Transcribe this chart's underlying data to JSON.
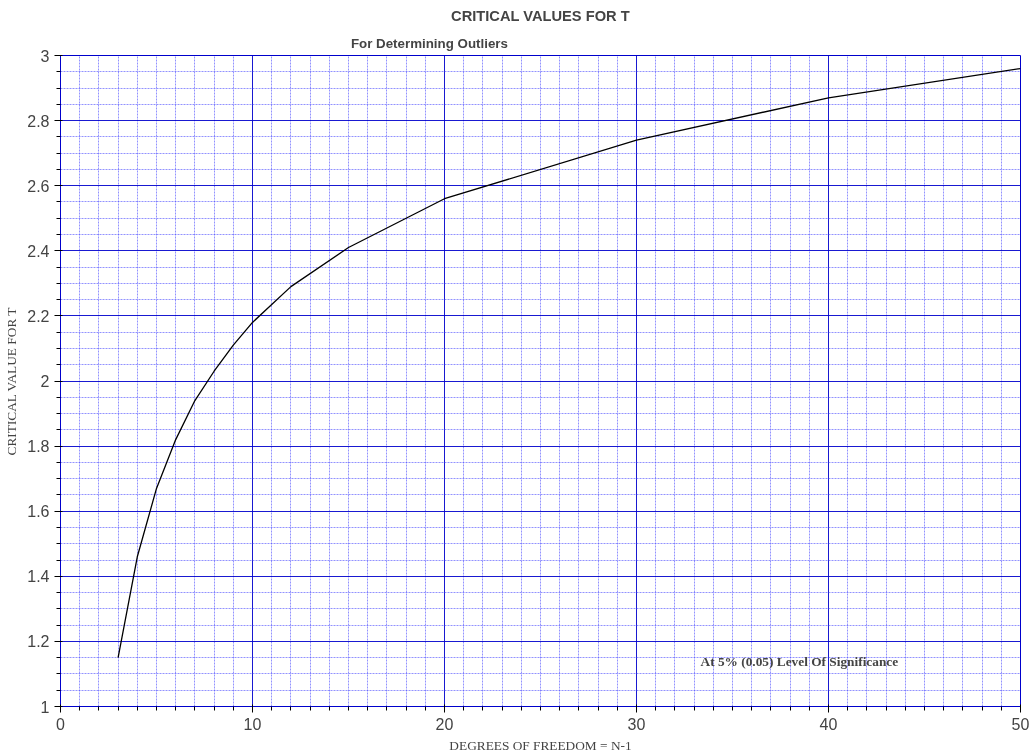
{
  "chart_data": {
    "type": "line",
    "title": "CRITICAL VALUES FOR T",
    "subtitle": "For Determining Outliers",
    "annotations": [
      "At 5% (0.05) Level Of Significance"
    ],
    "xlabel": "DEGREES OF FREEDOM = N-1",
    "ylabel": "CRITICAL VALUE FOR T",
    "x": [
      3,
      4,
      5,
      6,
      7,
      8,
      9,
      10,
      12,
      15,
      20,
      30,
      40,
      50
    ],
    "series": [
      {
        "color": "#000000",
        "values": [
          1.15,
          1.46,
          1.67,
          1.82,
          1.94,
          2.03,
          2.11,
          2.18,
          2.29,
          2.41,
          2.56,
          2.74,
          2.87,
          2.96
        ]
      }
    ],
    "xlim": [
      0,
      50
    ],
    "ylim": [
      1,
      3
    ],
    "xticks": [
      0,
      {
        "value": 1,
        "label": null
      },
      {
        "value": 2,
        "label": null
      },
      {
        "value": 3,
        "label": null
      },
      {
        "value": 4,
        "label": null
      },
      {
        "value": 5,
        "label": null
      },
      {
        "value": 6,
        "label": null
      },
      {
        "value": 7,
        "label": null
      },
      {
        "value": 8,
        "label": null
      },
      {
        "value": 9,
        "label": null
      },
      10,
      {
        "value": 11,
        "label": null
      },
      {
        "value": 12,
        "label": null
      },
      {
        "value": 13,
        "label": null
      },
      {
        "value": 14,
        "label": null
      },
      {
        "value": 15,
        "label": null
      },
      {
        "value": 16,
        "label": null
      },
      {
        "value": 17,
        "label": null
      },
      {
        "value": 18,
        "label": null
      },
      {
        "value": 19,
        "label": null
      },
      20,
      {
        "value": 21,
        "label": null
      },
      {
        "value": 22,
        "label": null
      },
      {
        "value": 23,
        "label": null
      },
      {
        "value": 24,
        "label": null
      },
      {
        "value": 25,
        "label": null
      },
      {
        "value": 26,
        "label": null
      },
      {
        "value": 27,
        "label": null
      },
      {
        "value": 28,
        "label": null
      },
      {
        "value": 29,
        "label": null
      },
      30,
      {
        "value": 31,
        "label": null
      },
      {
        "value": 32,
        "label": null
      },
      {
        "value": 33,
        "label": null
      },
      {
        "value": 34,
        "label": null
      },
      {
        "value": 35,
        "label": null
      },
      {
        "value": 36,
        "label": null
      },
      {
        "value": 37,
        "label": null
      },
      {
        "value": 38,
        "label": null
      },
      {
        "value": 39,
        "label": null
      },
      40,
      {
        "value": 41,
        "label": null
      },
      {
        "value": 42,
        "label": null
      },
      {
        "value": 43,
        "label": null
      },
      {
        "value": 44,
        "label": null
      },
      {
        "value": 45,
        "label": null
      },
      {
        "value": 46,
        "label": null
      },
      {
        "value": 47,
        "label": null
      },
      {
        "value": 48,
        "label": null
      },
      {
        "value": 49,
        "label": null
      },
      50
    ],
    "yticks": [
      1,
      {
        "value": 1.05,
        "label": null
      },
      {
        "value": 1.1,
        "label": null
      },
      {
        "value": 1.15,
        "label": null
      },
      1.2,
      {
        "value": 1.25,
        "label": null
      },
      {
        "value": 1.3,
        "label": null
      },
      {
        "value": 1.35,
        "label": null
      },
      1.4,
      {
        "value": 1.45,
        "label": null
      },
      {
        "value": 1.5,
        "label": null
      },
      {
        "value": 1.55,
        "label": null
      },
      1.6,
      {
        "value": 1.65,
        "label": null
      },
      {
        "value": 1.7,
        "label": null
      },
      {
        "value": 1.75,
        "label": null
      },
      1.8,
      {
        "value": 1.85,
        "label": null
      },
      {
        "value": 1.9,
        "label": null
      },
      {
        "value": 1.95,
        "label": null
      },
      2,
      {
        "value": 2.05,
        "label": null
      },
      {
        "value": 2.1,
        "label": null
      },
      {
        "value": 2.15,
        "label": null
      },
      2.2,
      {
        "value": 2.25,
        "label": null
      },
      {
        "value": 2.3,
        "label": null
      },
      {
        "value": 2.35,
        "label": null
      },
      2.4,
      {
        "value": 2.45,
        "label": null
      },
      {
        "value": 2.5,
        "label": null
      },
      {
        "value": 2.55,
        "label": null
      },
      2.6,
      {
        "value": 2.65,
        "label": null
      },
      {
        "value": 2.7,
        "label": null
      },
      {
        "value": 2.75,
        "label": null
      },
      2.8,
      {
        "value": 2.85,
        "label": null
      },
      {
        "value": 2.9,
        "label": null
      },
      {
        "value": 2.95,
        "label": null
      },
      3
    ],
    "grid": true,
    "marker": "none",
    "line_style": "solid"
  }
}
